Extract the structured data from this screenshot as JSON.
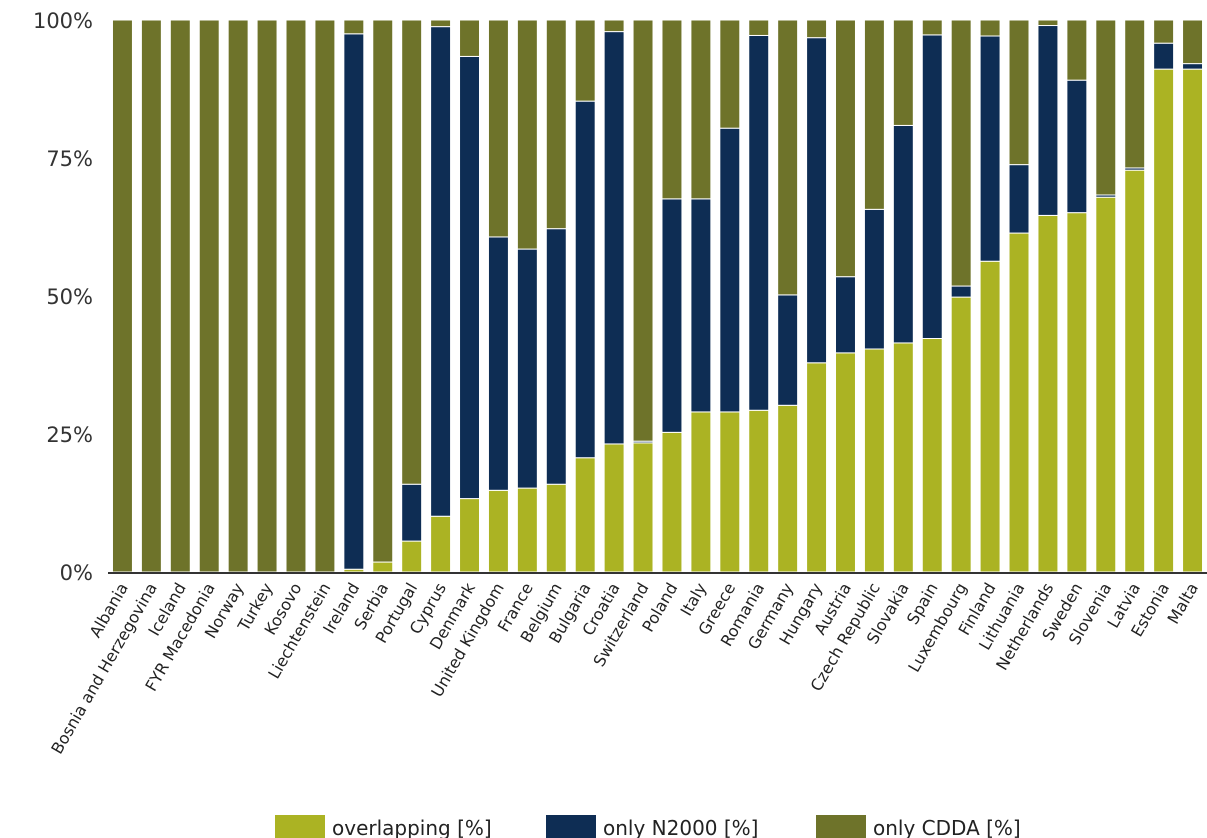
{
  "chart_data": {
    "type": "bar",
    "stacked": true,
    "title": "",
    "xlabel": "",
    "ylabel": "",
    "ylim": [
      0,
      100
    ],
    "yticks": [
      "0%",
      "25%",
      "50%",
      "75%",
      "100%"
    ],
    "categories": [
      "Albania",
      "Bosnia and Herzegovina",
      "Iceland",
      "FYR Macedonia",
      "Norway",
      "Turkey",
      "Kosovo",
      "Liechtenstein",
      "Ireland",
      "Serbia",
      "Portugal",
      "Cyprus",
      "Denmark",
      "United Kingdom",
      "France",
      "Belgium",
      "Bulgaria",
      "Croatia",
      "Switzerland",
      "Poland",
      "Italy",
      "Greece",
      "Romania",
      "Germany",
      "Hungary",
      "Austria",
      "Czech Republic",
      "Slovakia",
      "Spain",
      "Luxembourg",
      "Finland",
      "Lithuania",
      "Netherlands",
      "Sweden",
      "Slovenia",
      "Latvia",
      "Estonia",
      "Malta"
    ],
    "series": [
      {
        "name": "overlapping [%]",
        "color": "#abb323",
        "values": [
          0,
          0,
          0,
          0,
          0,
          0,
          0,
          0,
          0.5,
          1.8,
          5.6,
          10.1,
          13.3,
          14.8,
          15.2,
          15.9,
          20.7,
          23.2,
          23.4,
          25.3,
          29.0,
          29.0,
          29.3,
          30.2,
          37.9,
          39.7,
          40.4,
          41.5,
          42.3,
          49.8,
          56.3,
          61.4,
          64.6,
          65.1,
          67.9,
          72.8,
          91.1,
          91.1
        ]
      },
      {
        "name": "only N2000 [%]",
        "color": "#0e2d54",
        "values": [
          0,
          0,
          0,
          0,
          0,
          0,
          0,
          0,
          97.0,
          0,
          10.3,
          88.7,
          80.1,
          45.9,
          43.3,
          46.3,
          64.6,
          74.7,
          0.3,
          42.3,
          38.6,
          51.4,
          67.9,
          20.0,
          58.9,
          13.8,
          25.3,
          39.4,
          55.0,
          2.0,
          40.8,
          12.4,
          34.4,
          24.0,
          0.4,
          0.4,
          4.7,
          1.0
        ]
      },
      {
        "name": "only CDDA [%]",
        "color": "#6e732a",
        "values": [
          100,
          100,
          100,
          100,
          100,
          100,
          100,
          100,
          2.5,
          98.2,
          84.1,
          1.2,
          6.6,
          39.3,
          41.5,
          37.8,
          14.7,
          2.1,
          76.3,
          32.4,
          32.4,
          19.6,
          2.8,
          49.8,
          3.2,
          46.5,
          34.3,
          19.1,
          2.7,
          48.2,
          2.9,
          26.2,
          1.0,
          10.9,
          31.7,
          26.8,
          4.2,
          7.9
        ]
      }
    ],
    "legend_position": "bottom",
    "grid": false
  }
}
